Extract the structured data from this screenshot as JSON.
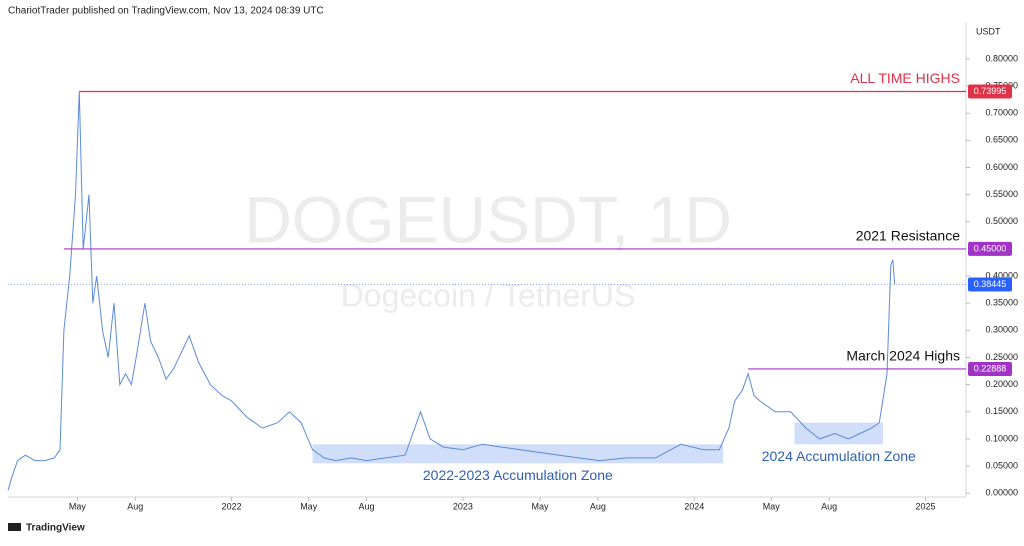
{
  "chart_data": {
    "type": "line",
    "header": "ChariotTrader published on TradingView.com, Nov 13, 2024 08:39 UTC",
    "watermark_title": "DOGEUSDT, 1D",
    "watermark_subtitle": "Dogecoin / TetherUS",
    "y_axis_unit": "USDT",
    "footer": "TradingView",
    "xlim": [
      0.4,
      50.1
    ],
    "xticks": [
      {
        "value": 4,
        "label": "May"
      },
      {
        "value": 7,
        "label": "Aug"
      },
      {
        "value": 12,
        "label": "2022"
      },
      {
        "value": 16,
        "label": "May"
      },
      {
        "value": 19,
        "label": "Aug"
      },
      {
        "value": 24,
        "label": "2023"
      },
      {
        "value": 28,
        "label": "May"
      },
      {
        "value": 31,
        "label": "Aug"
      },
      {
        "value": 36,
        "label": "2024"
      },
      {
        "value": 40,
        "label": "May"
      },
      {
        "value": 43,
        "label": "Aug"
      },
      {
        "value": 48,
        "label": "2025"
      }
    ],
    "ylim": [
      -0.007,
      0.868
    ],
    "yticks": [
      {
        "value": 0.8,
        "label": "0.80000"
      },
      {
        "value": 0.75,
        "label": "0.75000"
      },
      {
        "value": 0.7,
        "label": "0.70000"
      },
      {
        "value": 0.65,
        "label": "0.65000"
      },
      {
        "value": 0.6,
        "label": "0.60000"
      },
      {
        "value": 0.55,
        "label": "0.55000"
      },
      {
        "value": 0.5,
        "label": "0.50000"
      },
      {
        "value": 0.4,
        "label": "0.40000"
      },
      {
        "value": 0.35,
        "label": "0.35000"
      },
      {
        "value": 0.3,
        "label": "0.30000"
      },
      {
        "value": 0.25,
        "label": "0.25000"
      },
      {
        "value": 0.2,
        "label": "0.20000"
      },
      {
        "value": 0.15,
        "label": "0.15000"
      },
      {
        "value": 0.1,
        "label": "0.10000"
      },
      {
        "value": 0.05,
        "label": "0.05000"
      },
      {
        "value": 0,
        "label": "0.00000"
      }
    ],
    "series": [
      {
        "name": "DOGEUSDT",
        "color": "#5b8ad8",
        "x": [
          0.4,
          0.6,
          0.9,
          1.3,
          1.8,
          2.3,
          2.8,
          3.1,
          3.3,
          3.6,
          3.9,
          4.1,
          4.3,
          4.6,
          4.8,
          5.0,
          5.3,
          5.6,
          5.9,
          6.2,
          6.5,
          6.8,
          7.1,
          7.5,
          7.8,
          8.2,
          8.6,
          9.0,
          9.4,
          9.8,
          10.3,
          10.9,
          11.5,
          12.0,
          12.8,
          13.6,
          14.4,
          15.0,
          15.6,
          16.2,
          16.8,
          17.4,
          18.2,
          19.0,
          20.0,
          21.0,
          21.8,
          22.3,
          23.0,
          24.0,
          25.0,
          26.0,
          27.0,
          28.0,
          29.0,
          30.0,
          31.1,
          32.5,
          34.0,
          35.3,
          36.5,
          37.3,
          37.8,
          38.1,
          38.5,
          38.8,
          39.1,
          39.4,
          40.2,
          41.0,
          41.8,
          42.5,
          43.3,
          44.0,
          44.6,
          45.2,
          45.6,
          46.0,
          46.2,
          46.3,
          46.4
        ],
        "values": [
          0.005,
          0.03,
          0.06,
          0.07,
          0.06,
          0.06,
          0.065,
          0.08,
          0.3,
          0.4,
          0.55,
          0.74,
          0.45,
          0.55,
          0.35,
          0.4,
          0.3,
          0.25,
          0.35,
          0.2,
          0.22,
          0.2,
          0.26,
          0.35,
          0.28,
          0.25,
          0.21,
          0.23,
          0.26,
          0.29,
          0.24,
          0.2,
          0.18,
          0.17,
          0.14,
          0.12,
          0.13,
          0.15,
          0.13,
          0.08,
          0.065,
          0.06,
          0.065,
          0.06,
          0.065,
          0.07,
          0.15,
          0.1,
          0.085,
          0.08,
          0.09,
          0.085,
          0.08,
          0.075,
          0.07,
          0.065,
          0.06,
          0.065,
          0.065,
          0.09,
          0.08,
          0.08,
          0.12,
          0.17,
          0.19,
          0.22,
          0.18,
          0.17,
          0.15,
          0.15,
          0.12,
          0.1,
          0.11,
          0.1,
          0.11,
          0.12,
          0.13,
          0.22,
          0.42,
          0.43,
          0.38445
        ]
      }
    ],
    "levels": [
      {
        "name": "ALL TIME HIGHS",
        "value": 0.73995,
        "value_label": "0.73995",
        "color": "#e0334a",
        "from": 4.1
      },
      {
        "name": "2021 Resistance",
        "value": 0.45,
        "value_label": "0.45000",
        "color": "#a233c7",
        "from": 3.3
      },
      {
        "name": "March 2024 Highs",
        "value": 0.22888,
        "value_label": "0.22888",
        "color": "#a233c7",
        "from": 38.8
      }
    ],
    "last_price": {
      "value": 0.38445,
      "value_label": "0.38445",
      "color": "#2962ff"
    },
    "zones": [
      {
        "name": "2022-2023 Accumulation Zone",
        "x": [
          16.2,
          37.5
        ],
        "y": [
          0.055,
          0.09
        ]
      },
      {
        "name": "2024 Accumulation Zone",
        "x": [
          41.2,
          45.8
        ],
        "y": [
          0.09,
          0.13
        ]
      }
    ]
  }
}
